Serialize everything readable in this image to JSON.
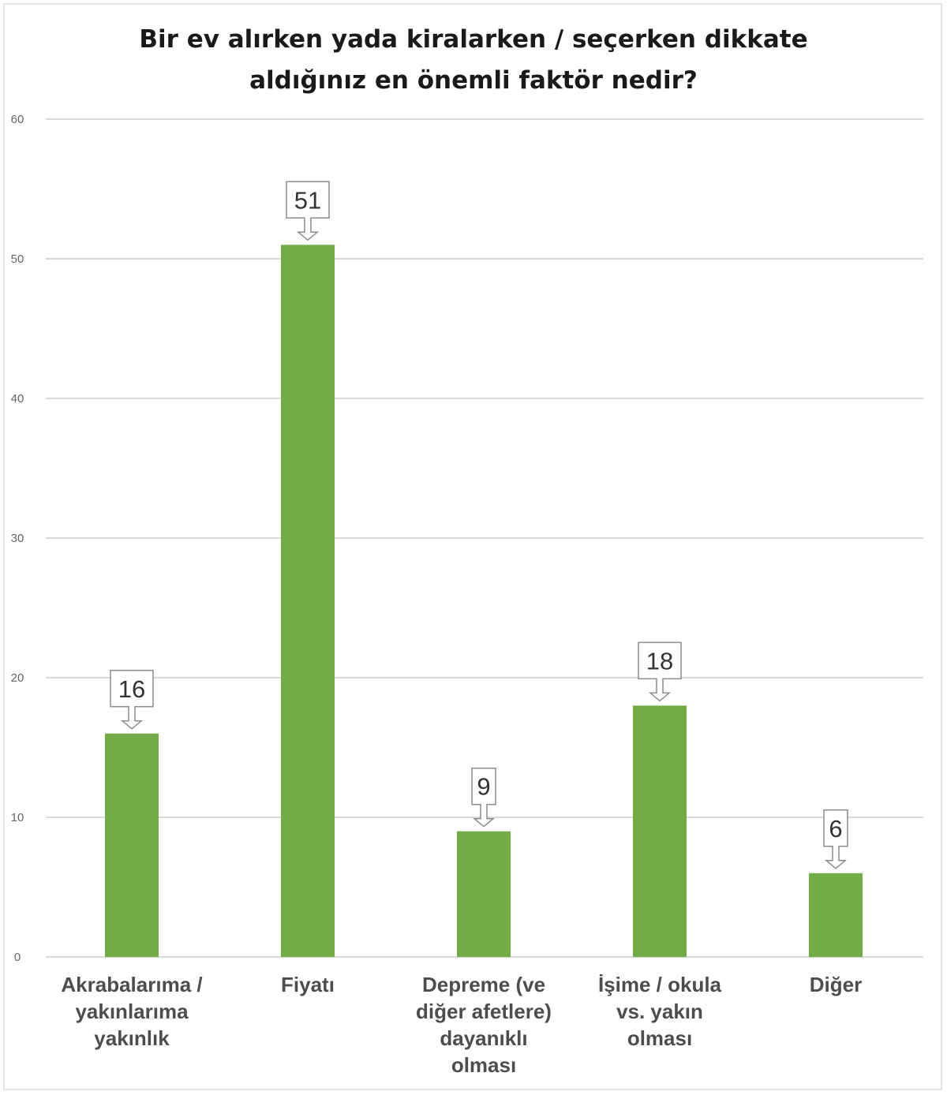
{
  "chart_data": {
    "type": "bar",
    "title_lines": [
      "Bir ev alırken yada kiralarken / seçerken dikkate",
      "aldığınız en önemli faktör nedir?"
    ],
    "categories": [
      [
        "Akrabalarıma /",
        "yakınlarıma",
        "yakınlık"
      ],
      [
        "Fiyatı"
      ],
      [
        "Depreme (ve",
        "diğer afetlere)",
        "dayanıklı",
        "olması"
      ],
      [
        "İşime / okula",
        "vs. yakın",
        "olması"
      ],
      [
        "Diğer"
      ]
    ],
    "values": [
      16,
      51,
      9,
      18,
      6
    ],
    "ylim": [
      0,
      60
    ],
    "yticks": [
      0,
      10,
      20,
      30,
      40,
      50,
      60
    ],
    "grid": true,
    "bar_color": "#70ad47",
    "gridline_color": "#d9d9d9"
  }
}
